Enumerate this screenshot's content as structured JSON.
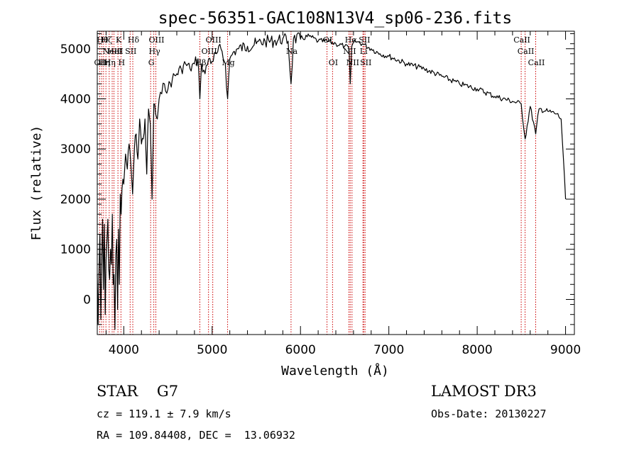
{
  "chart_data": {
    "type": "line",
    "title": "spec-56351-GAC108N13V4_sp06-236.fits",
    "xlabel": "Wavelength (Å)",
    "ylabel": "Flux (relative)",
    "xlim": [
      3700,
      9100
    ],
    "ylim": [
      -700,
      5350
    ],
    "x_ticks": [
      4000,
      5000,
      6000,
      7000,
      8000,
      9000
    ],
    "y_ticks": [
      0,
      1000,
      2000,
      3000,
      4000,
      5000
    ],
    "line_color": "#cc0000",
    "series": [
      {
        "name": "flux",
        "x": [
          3700,
          3710,
          3720,
          3730,
          3740,
          3750,
          3760,
          3770,
          3780,
          3790,
          3800,
          3810,
          3820,
          3830,
          3840,
          3850,
          3860,
          3870,
          3880,
          3890,
          3900,
          3910,
          3920,
          3930,
          3940,
          3950,
          3960,
          3970,
          3980,
          3990,
          4000,
          4020,
          4040,
          4060,
          4080,
          4100,
          4120,
          4140,
          4160,
          4180,
          4200,
          4220,
          4240,
          4260,
          4280,
          4300,
          4320,
          4340,
          4360,
          4380,
          4400,
          4430,
          4460,
          4500,
          4550,
          4600,
          4650,
          4700,
          4750,
          4800,
          4840,
          4861,
          4880,
          4920,
          4960,
          5000,
          5050,
          5100,
          5150,
          5175,
          5200,
          5250,
          5300,
          5400,
          5500,
          5600,
          5700,
          5800,
          5860,
          5893,
          5920,
          6000,
          6100,
          6200,
          6300,
          6400,
          6500,
          6550,
          6563,
          6580,
          6620,
          6700,
          6800,
          6900,
          7000,
          7200,
          7400,
          7600,
          7800,
          8000,
          8200,
          8400,
          8498,
          8542,
          8600,
          8662,
          8700,
          8800,
          8900,
          8950,
          9000
        ],
        "y": [
          500,
          -500,
          600,
          1300,
          -400,
          700,
          1600,
          200,
          1500,
          -300,
          800,
          1200,
          1600,
          600,
          400,
          1000,
          700,
          1700,
          300,
          500,
          -600,
          900,
          1200,
          -200,
          1400,
          300,
          2100,
          1700,
          2200,
          2400,
          2300,
          2900,
          2600,
          3100,
          2700,
          2100,
          3000,
          3300,
          2800,
          3600,
          3100,
          3200,
          3600,
          2500,
          3800,
          3500,
          2000,
          3900,
          3700,
          3600,
          4000,
          4100,
          4300,
          4200,
          4400,
          4500,
          4600,
          4700,
          4600,
          4700,
          4800,
          4000,
          4700,
          4500,
          4800,
          4750,
          4900,
          5000,
          4700,
          4000,
          4800,
          4950,
          5000,
          5050,
          5100,
          5150,
          5150,
          5200,
          5150,
          4300,
          5200,
          5200,
          5250,
          5150,
          5150,
          5100,
          5050,
          5000,
          4300,
          5050,
          5150,
          5100,
          5000,
          4900,
          4850,
          4700,
          4600,
          4450,
          4300,
          4200,
          4050,
          3950,
          3900,
          3200,
          3850,
          3300,
          3800,
          3750,
          3700,
          3600,
          2000
        ]
      }
    ],
    "lines": [
      {
        "wavelength": 3727,
        "label": "OII",
        "row": 3
      },
      {
        "wavelength": 3750,
        "label": "Hθ",
        "row": 1
      },
      {
        "wavelength": 3771,
        "label": "Hη",
        "row": 3
      },
      {
        "wavelength": 3798,
        "label": "Hζ",
        "row": 1
      },
      {
        "wavelength": 3835,
        "label": "Hη",
        "row": 3
      },
      {
        "wavelength": 3869,
        "label": "NeIII",
        "row": 2
      },
      {
        "wavelength": 3889,
        "label": "HeI",
        "row": 2
      },
      {
        "wavelength": 3934,
        "label": "K",
        "row": 1
      },
      {
        "wavelength": 3968,
        "label": "H",
        "row": 3
      },
      {
        "wavelength": 4072,
        "label": "SII",
        "row": 2
      },
      {
        "wavelength": 4102,
        "label": "Hδ",
        "row": 1
      },
      {
        "wavelength": 4304,
        "label": "G",
        "row": 3
      },
      {
        "wavelength": 4340,
        "label": "Hγ",
        "row": 2
      },
      {
        "wavelength": 4363,
        "label": "OIII",
        "row": 1
      },
      {
        "wavelength": 4861,
        "label": "Hβ",
        "row": 3
      },
      {
        "wavelength": 4959,
        "label": "OIII",
        "row": 2
      },
      {
        "wavelength": 5007,
        "label": "OIII",
        "row": 1
      },
      {
        "wavelength": 5175,
        "label": "Mg",
        "row": 3
      },
      {
        "wavelength": 5893,
        "label": "Na",
        "row": 2
      },
      {
        "wavelength": 6300,
        "label": "OI",
        "row": 1
      },
      {
        "wavelength": 6363,
        "label": "OI",
        "row": 3
      },
      {
        "wavelength": 6548,
        "label": "NII",
        "row": 2
      },
      {
        "wavelength": 6563,
        "label": "Hα",
        "row": 1
      },
      {
        "wavelength": 6583,
        "label": "NII",
        "row": 3
      },
      {
        "wavelength": 6707,
        "label": "Li",
        "row": 2
      },
      {
        "wavelength": 6716,
        "label": "SII",
        "row": 1
      },
      {
        "wavelength": 6731,
        "label": "SII",
        "row": 3
      },
      {
        "wavelength": 8498,
        "label": "CaII",
        "row": 1
      },
      {
        "wavelength": 8542,
        "label": "CaII",
        "row": 2
      },
      {
        "wavelength": 8662,
        "label": "CaII",
        "row": 3
      }
    ]
  },
  "info": {
    "classification": "STAR    G7",
    "survey": "LAMOST DR3",
    "cz": "cz = 119.1 ± 7.9 km/s",
    "obs_date": "Obs-Date: 20130227",
    "coords": "RA = 109.84408, DEC =  13.06932"
  }
}
